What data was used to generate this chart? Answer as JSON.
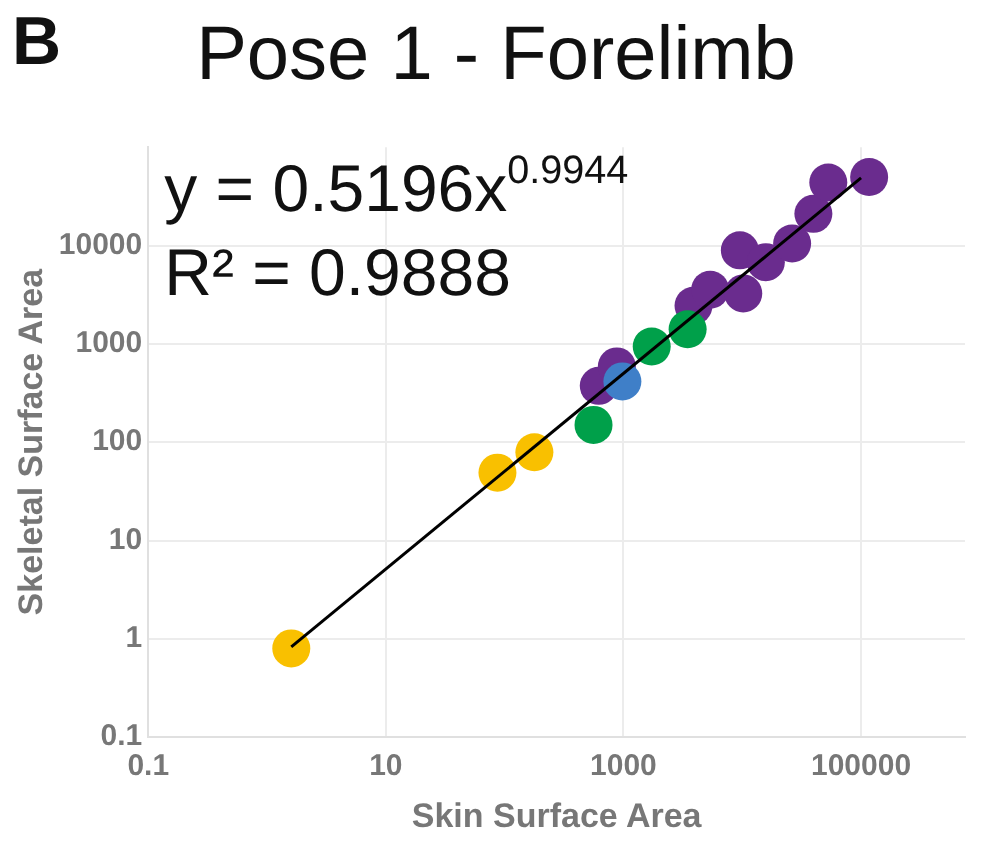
{
  "chart_data": {
    "type": "scatter",
    "title": "Pose 1 - Forelimb",
    "xlabel": "Skin Surface Area",
    "ylabel": "Skeletal Surface Area",
    "annotations": [
      "B",
      "y = 0.5196x$^{0.9944}$",
      "R² = 0.9888"
    ],
    "log": "xy",
    "grid": true,
    "marker": "circle",
    "legend": false,
    "xlim": [
      0.1,
      750000
    ],
    "xticks": [
      0.1,
      10,
      1000,
      100000
    ],
    "ylim": [
      0.1,
      100000
    ],
    "yticks": [
      0.1,
      1,
      10,
      100,
      1000,
      10000
    ],
    "series": [
      {
        "type": "line",
        "color": "#000000",
        "marker": "none",
        "line_style": "solid",
        "x": [
          1.6,
          100000
        ],
        "values": [
          0.83,
          48700
        ]
      },
      {
        "color": "#f9c000",
        "x": [
          1.6,
          87,
          178
        ],
        "values": [
          0.8,
          49,
          79
        ]
      },
      {
        "color": "#00a04a",
        "x": [
          560,
          1730,
          3470
        ],
        "values": [
          150,
          940,
          1410
        ]
      },
      {
        "color": "#3f7fc8",
        "x": [
          980
        ],
        "values": [
          415
        ]
      },
      {
        "color": "#6a2c8e",
        "x": [
          620,
          880,
          3890,
          5370,
          10200,
          9550,
          15800,
          26300,
          39700,
          53000,
          117000
        ],
        "values": [
          374,
          590,
          2440,
          3550,
          3260,
          8930,
          6780,
          10500,
          21000,
          43700,
          49700
        ]
      }
    ]
  }
}
